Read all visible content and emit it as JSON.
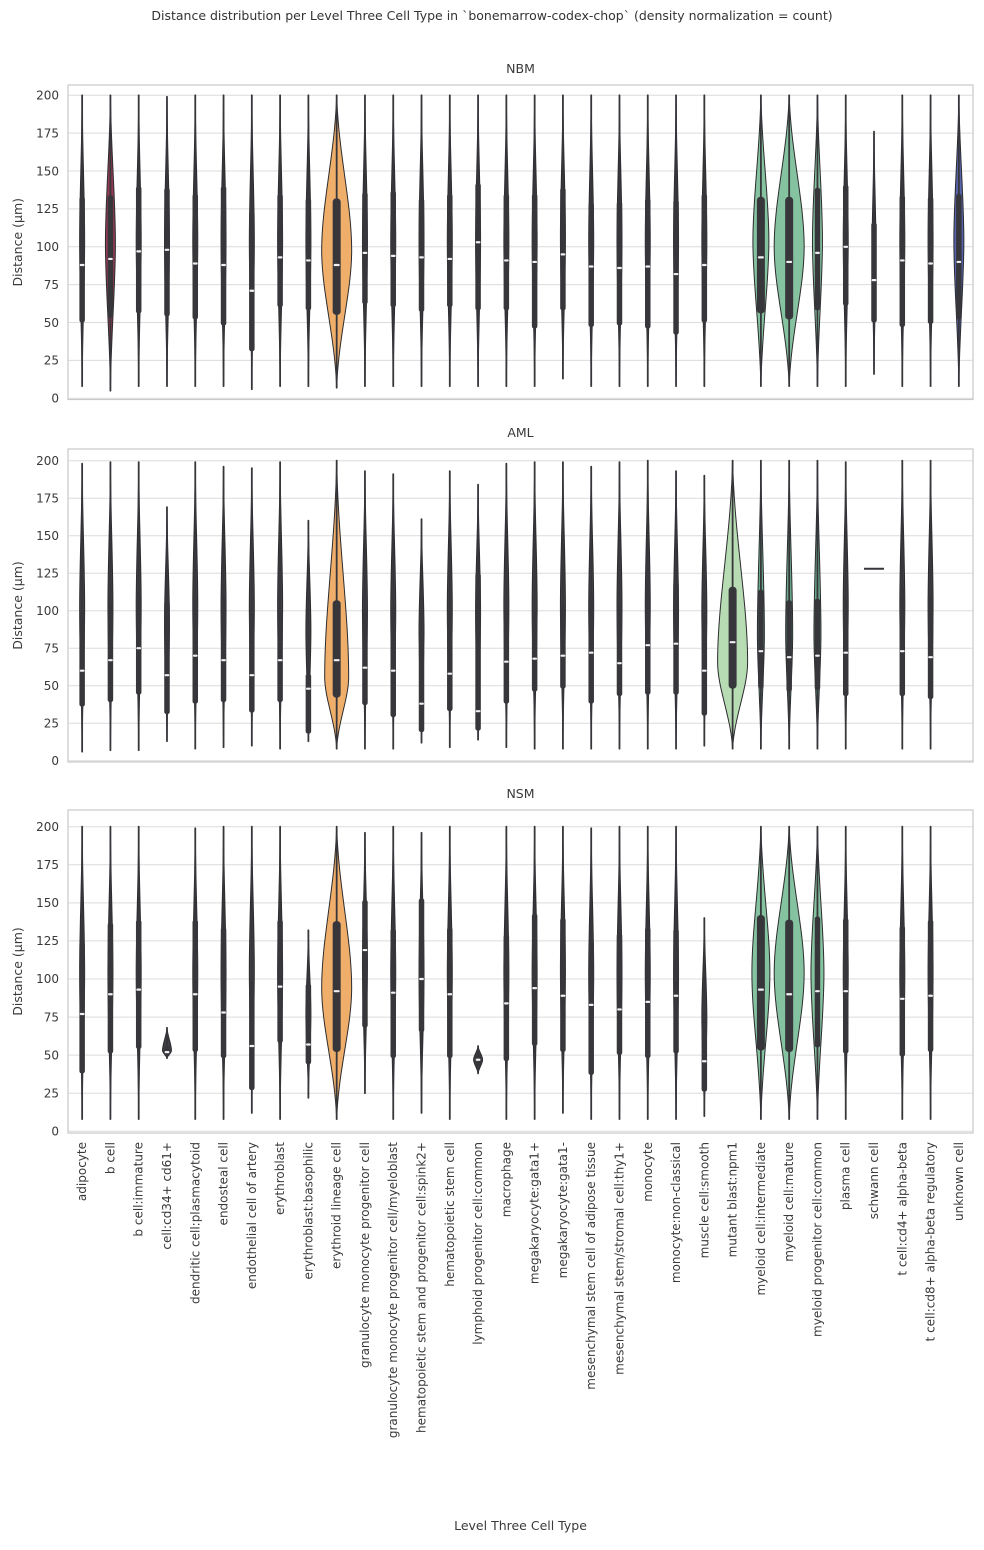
{
  "title": "Distance distribution per Level Three Cell Type in `bonemarrow-codex-chop` (density normalization = count)",
  "xlabel": "Level Three Cell Type",
  "ylabel": "Distance (μm)",
  "chart_data": {
    "type": "violin",
    "normalization": "count",
    "title": "Distance distribution per Level Three Cell Type in `bonemarrow-codex-chop` (density normalization = count)",
    "xlabel": "Level Three Cell Type",
    "ylabel": "Distance (μm)",
    "ylim": [
      0,
      200
    ],
    "y_ticks": [
      0,
      25,
      50,
      75,
      100,
      125,
      150,
      175,
      200
    ],
    "grid": "horizontal",
    "panel_order": [
      "NBM",
      "AML",
      "NSM"
    ],
    "colors": {
      "default": "#3f3f44",
      "orange": "#f0ae6b",
      "teal": "#85c2a0",
      "teal2": "#69a98b",
      "green": "#b7dcb4",
      "red": "#8f3a52",
      "blue": "#5561a8",
      "box": "#36363b",
      "whisker": "#36363b",
      "median": "#f0f0f0",
      "grid_line": "#dcdcdc",
      "border": "#c9c9c9",
      "text": "#3a3a3a",
      "violin_stroke": "#2c2c2e"
    },
    "categories": [
      "adipocyte",
      "b cell",
      "b cell:immature",
      "cell:cd34+ cd61+",
      "dendritic cell:plasmacytoid",
      "endosteal cell",
      "endothelial cell of artery",
      "erythroblast",
      "erythroblast:basophilic",
      "erythroid lineage cell",
      "granulocyte monocyte progenitor cell",
      "granulocyte monocyte progenitor cell/myeloblast",
      "hematopoietic stem and progenitor cell:spink2+",
      "hematopoietic stem cell",
      "lymphoid progenitor cell:common",
      "macrophage",
      "megakaryocyte:gata1+",
      "megakaryocyte:gata1-",
      "mesenchymal stem cell of adipose tissue",
      "mesenchymal stem/stromal cell:thy1+",
      "monocyte",
      "monocyte:non-classical",
      "muscle cell:smooth",
      "mutant blast:npm1",
      "myeloid cell:intermediate",
      "myeloid cell:mature",
      "myeloid progenitor cell:common",
      "plasma cell",
      "schwann cell",
      "t cell:cd4+ alpha-beta",
      "t cell:cd8+ alpha-beta regulatory",
      "unknown cell"
    ],
    "stat_format": "[whisker_min, q1, median, q3, whisker_max, width_px, color, bulge_frac]",
    "panels": [
      {
        "name": "NBM",
        "violins": [
          [
            8,
            50,
            88,
            133,
            200
          ],
          [
            5,
            53,
            92,
            134,
            200,
            10,
            "red"
          ],
          [
            8,
            56,
            97,
            140,
            200
          ],
          [
            8,
            54,
            98,
            139,
            199
          ],
          [
            8,
            52,
            89,
            135,
            200
          ],
          [
            8,
            48,
            88,
            140,
            200
          ],
          [
            6,
            31,
            71,
            123,
            200
          ],
          [
            8,
            60,
            93,
            135,
            200
          ],
          [
            8,
            58,
            91,
            132,
            200
          ],
          [
            7,
            55,
            88,
            132,
            200,
            30,
            "orange",
            0.47
          ],
          [
            8,
            62,
            96,
            136,
            200
          ],
          [
            8,
            60,
            94,
            137,
            200
          ],
          [
            8,
            57,
            93,
            132,
            200
          ],
          [
            8,
            60,
            92,
            135,
            200
          ],
          [
            8,
            58,
            103,
            142,
            200
          ],
          [
            8,
            58,
            91,
            135,
            200
          ],
          [
            8,
            46,
            90,
            135,
            200
          ],
          [
            13,
            58,
            95,
            139,
            200
          ],
          [
            8,
            47,
            87,
            129,
            200
          ],
          [
            8,
            48,
            86,
            130,
            200
          ],
          [
            8,
            46,
            87,
            132,
            200
          ],
          [
            8,
            42,
            82,
            131,
            200
          ],
          [
            8,
            50,
            88,
            135,
            200
          ],
          null,
          [
            8,
            56,
            93,
            133,
            200,
            16,
            "teal"
          ],
          [
            8,
            52,
            90,
            133,
            200,
            30,
            "teal",
            0.48
          ],
          [
            8,
            58,
            96,
            139,
            200,
            10,
            "teal"
          ],
          [
            8,
            61,
            100,
            141,
            200
          ],
          [
            16,
            50,
            78,
            116,
            176,
            4
          ],
          [
            8,
            47,
            91,
            134,
            200
          ],
          [
            8,
            49,
            89,
            133,
            200
          ],
          [
            8,
            52,
            90,
            135,
            200,
            10,
            "blue"
          ]
        ]
      },
      {
        "name": "AML",
        "violins": [
          [
            6,
            36,
            60,
            99,
            198
          ],
          [
            7,
            39,
            67,
            105,
            199
          ],
          [
            7,
            44,
            75,
            113,
            199
          ],
          [
            13,
            31,
            57,
            106,
            169
          ],
          [
            8,
            38,
            70,
            108,
            199
          ],
          [
            9,
            39,
            67,
            110,
            196
          ],
          [
            10,
            32,
            57,
            98,
            195
          ],
          [
            8,
            39,
            67,
            100,
            199
          ],
          [
            13,
            18,
            48,
            58,
            160
          ],
          [
            8,
            42,
            67,
            107,
            200,
            24,
            "orange",
            0.25
          ],
          [
            8,
            37,
            62,
            99,
            193
          ],
          [
            8,
            29,
            60,
            102,
            191
          ],
          [
            12,
            19,
            38,
            75,
            161
          ],
          [
            9,
            33,
            58,
            100,
            193
          ],
          [
            14,
            20,
            33,
            125,
            184
          ],
          [
            9,
            38,
            66,
            100,
            198
          ],
          [
            8,
            46,
            68,
            100,
            199
          ],
          [
            8,
            48,
            70,
            104,
            199
          ],
          [
            8,
            38,
            72,
            111,
            196
          ],
          [
            8,
            43,
            65,
            104,
            199
          ],
          [
            8,
            44,
            77,
            119,
            200
          ],
          [
            8,
            44,
            78,
            119,
            193
          ],
          [
            10,
            30,
            60,
            96,
            190
          ],
          [
            8,
            48,
            79,
            116,
            200,
            30,
            "green",
            0.3
          ],
          [
            8,
            48,
            73,
            114,
            200,
            7,
            "teal2",
            0.4
          ],
          [
            8,
            46,
            69,
            107,
            200,
            7,
            "teal2",
            0.4
          ],
          [
            8,
            47,
            70,
            108,
            200,
            7,
            "teal2",
            0.4
          ],
          [
            8,
            43,
            72,
            108,
            199
          ],
          {
            "dash": 128
          },
          [
            8,
            43,
            73,
            115,
            200
          ],
          [
            8,
            41,
            69,
            110,
            200
          ],
          null
        ]
      },
      {
        "name": "NSM",
        "violins": [
          [
            8,
            38,
            77,
            124,
            200
          ],
          [
            8,
            51,
            90,
            137,
            200
          ],
          [
            8,
            54,
            93,
            139,
            200
          ],
          [
            48,
            49,
            52,
            56,
            68,
            9,
            "default",
            0.25
          ],
          [
            8,
            52,
            90,
            139,
            199
          ],
          [
            8,
            48,
            78,
            134,
            200
          ],
          [
            12,
            27,
            56,
            98,
            200
          ],
          [
            8,
            58,
            95,
            139,
            200
          ],
          [
            22,
            44,
            57,
            97,
            132
          ],
          [
            8,
            52,
            92,
            138,
            200,
            30,
            "orange",
            0.45
          ],
          [
            25,
            68,
            119,
            152,
            196
          ],
          [
            8,
            48,
            91,
            133,
            200
          ],
          [
            12,
            65,
            100,
            153,
            196
          ],
          [
            8,
            48,
            90,
            134,
            200
          ],
          [
            38,
            42,
            47,
            51,
            56,
            9
          ],
          [
            8,
            46,
            84,
            129,
            200
          ],
          [
            8,
            56,
            94,
            143,
            200
          ],
          [
            12,
            52,
            89,
            140,
            200
          ],
          [
            8,
            37,
            83,
            125,
            199
          ],
          [
            8,
            50,
            80,
            130,
            200
          ],
          [
            8,
            48,
            85,
            134,
            200
          ],
          [
            8,
            51,
            89,
            133,
            200
          ],
          [
            10,
            26,
            46,
            78,
            140
          ],
          null,
          [
            8,
            53,
            93,
            142,
            200,
            18,
            "teal"
          ],
          [
            8,
            52,
            90,
            139,
            200,
            30,
            "teal"
          ],
          [
            8,
            55,
            92,
            141,
            200,
            13,
            "teal"
          ],
          [
            8,
            51,
            92,
            140,
            200
          ],
          null,
          [
            8,
            49,
            87,
            135,
            200
          ],
          [
            8,
            52,
            89,
            139,
            200
          ],
          null
        ]
      }
    ]
  }
}
